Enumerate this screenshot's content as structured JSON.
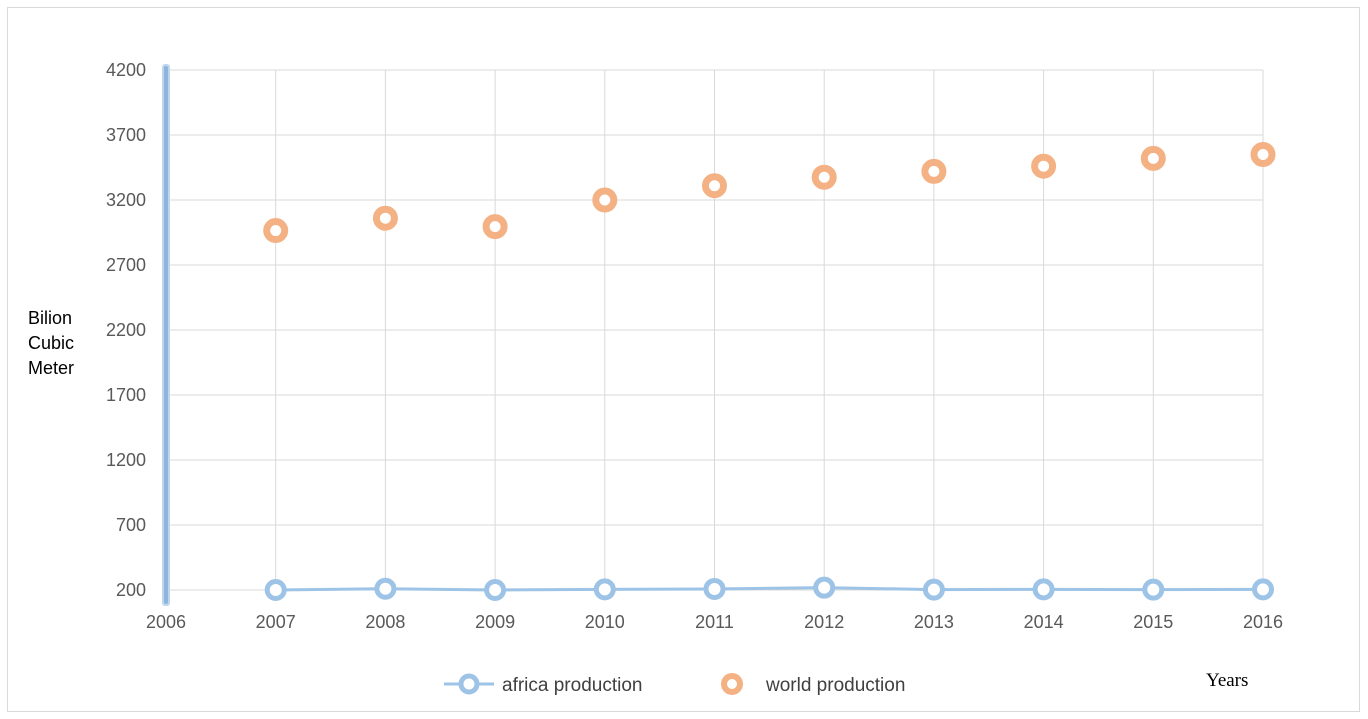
{
  "chart_data": {
    "type": "scatter",
    "title": "",
    "xlabel": "Years",
    "ylabel_lines": [
      "Bilion",
      "Cubic",
      "Meter"
    ],
    "xlim": [
      2006,
      2016
    ],
    "ylim": [
      200,
      4200
    ],
    "x_ticks": [
      2006,
      2007,
      2008,
      2009,
      2010,
      2011,
      2012,
      2013,
      2014,
      2015,
      2016
    ],
    "y_ticks": [
      200,
      700,
      1200,
      1700,
      2200,
      2700,
      3200,
      3700,
      4200
    ],
    "grid": true,
    "legend_position": "bottom",
    "series": [
      {
        "name": "africa production",
        "style": "line-with-markers",
        "color": "#9dc3e6",
        "x": [
          2007,
          2008,
          2009,
          2010,
          2011,
          2012,
          2013,
          2014,
          2015,
          2016
        ],
        "y": [
          200,
          210,
          200,
          205,
          208,
          218,
          203,
          205,
          203,
          205
        ]
      },
      {
        "name": "world production",
        "style": "markers",
        "color": "#f4b183",
        "x": [
          2007,
          2008,
          2009,
          2010,
          2011,
          2012,
          2013,
          2014,
          2015,
          2016
        ],
        "y": [
          2965,
          3060,
          2995,
          3200,
          3310,
          3375,
          3420,
          3460,
          3520,
          3550
        ]
      }
    ]
  }
}
